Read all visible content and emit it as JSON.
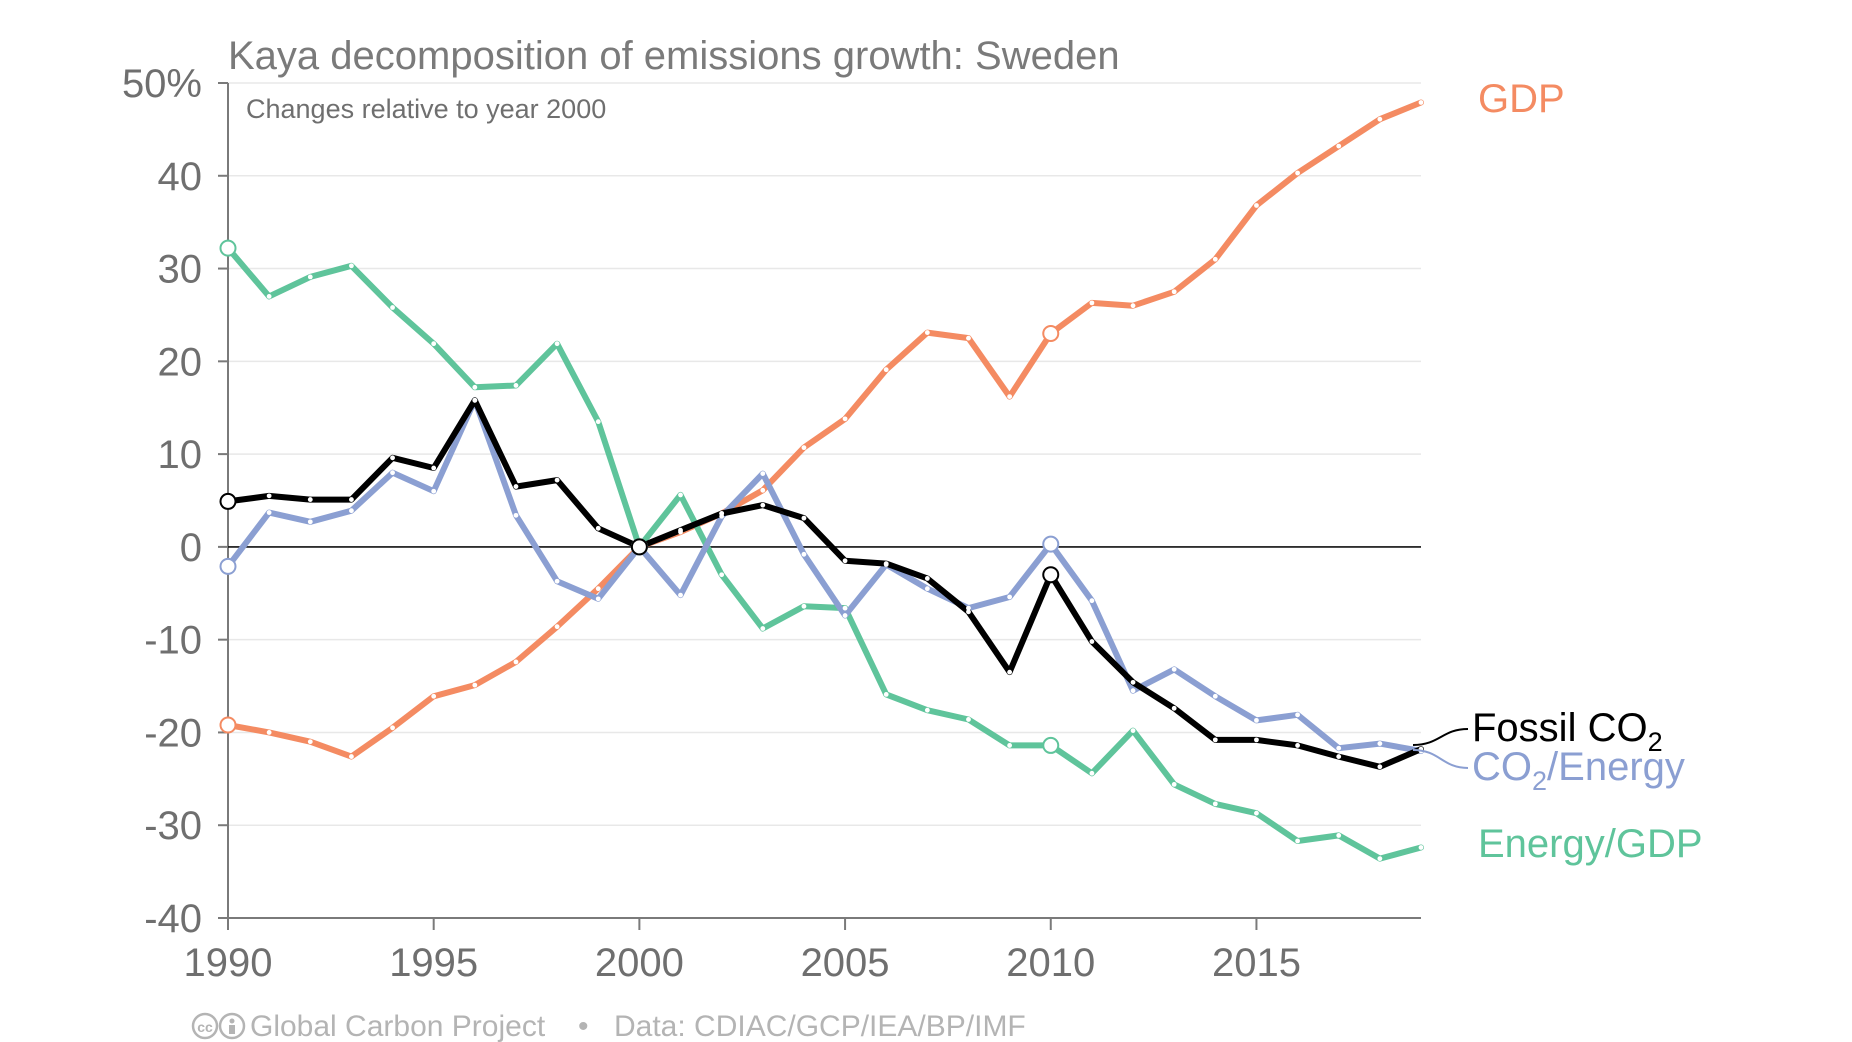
{
  "chart_data": {
    "type": "line",
    "title": "Kaya decomposition of emissions growth: Sweden",
    "subtitle": "Changes relative to year 2000",
    "xlim": [
      1990,
      2019
    ],
    "ylim": [
      -40,
      50
    ],
    "x_ticks": [
      1990,
      1995,
      2000,
      2005,
      2010,
      2015
    ],
    "x_tick_labels": [
      "1990",
      "1995",
      "2000",
      "2005",
      "2010",
      "2015"
    ],
    "y_ticks": [
      50,
      40,
      30,
      20,
      10,
      0,
      -10,
      -20,
      -30,
      -40
    ],
    "y_tick_labels": [
      "50%",
      "40",
      "30",
      "20",
      "10",
      "0",
      "-10",
      "-20",
      "-30",
      "-40"
    ],
    "grid": true,
    "legend": "inline-right",
    "x": [
      1990,
      1991,
      1992,
      1993,
      1994,
      1995,
      1996,
      1997,
      1998,
      1999,
      2000,
      2001,
      2002,
      2003,
      2004,
      2005,
      2006,
      2007,
      2008,
      2009,
      2010,
      2011,
      2012,
      2013,
      2014,
      2015,
      2016,
      2017,
      2018,
      2019
    ],
    "series": [
      {
        "name": "GDP",
        "color": "#f48b62",
        "values": [
          -19.2,
          -20,
          -21,
          -22.6,
          -19.5,
          -16.1,
          -14.9,
          -12.4,
          -8.6,
          -4.5,
          0,
          1.6,
          3.6,
          6.1,
          10.7,
          13.8,
          19.1,
          23.1,
          22.5,
          16.2,
          23.0,
          26.3,
          26.0,
          27.5,
          31.0,
          36.8,
          40.3,
          43.2,
          46.1,
          47.9
        ]
      },
      {
        "name": "Energy/GDP",
        "color": "#5fc49b",
        "values": [
          32.2,
          27.0,
          29.1,
          30.3,
          25.8,
          21.9,
          17.2,
          17.4,
          21.9,
          13.5,
          0,
          5.6,
          -3.0,
          -8.8,
          -6.4,
          -6.6,
          -15.9,
          -17.6,
          -18.6,
          -21.4,
          -21.4,
          -24.4,
          -19.8,
          -25.6,
          -27.7,
          -28.7,
          -31.7,
          -31.1,
          -33.6,
          -32.4
        ]
      },
      {
        "name": "CO₂/Energy",
        "color": "#8b9fd2",
        "values": [
          -2.1,
          3.7,
          2.7,
          3.9,
          8.0,
          6.0,
          15.8,
          3.4,
          -3.7,
          -5.6,
          0,
          -5.2,
          3.3,
          7.9,
          -0.8,
          -7.4,
          -1.9,
          -4.5,
          -6.6,
          -5.4,
          0.3,
          -5.8,
          -15.5,
          -13.2,
          -16.1,
          -18.7,
          -18.1,
          -21.7,
          -21.2,
          -22.0
        ]
      },
      {
        "name": "Fossil CO₂",
        "color": "#000000",
        "values": [
          4.9,
          5.5,
          5.1,
          5.1,
          9.6,
          8.5,
          15.8,
          6.5,
          7.2,
          2.0,
          0,
          1.8,
          3.6,
          4.5,
          3.1,
          -1.5,
          -1.8,
          -3.4,
          -7.0,
          -13.5,
          -3.0,
          -10.2,
          -14.6,
          -17.4,
          -20.8,
          -20.8,
          -21.4,
          -22.6,
          -23.7,
          -21.8
        ]
      }
    ],
    "highlighted_years": [
      1990,
      2000,
      2010
    ]
  },
  "labels": {
    "gdp": "GDP",
    "energy_gdp": "Energy/GDP",
    "fossil_prefix": "Fossil CO",
    "co2_prefix": "CO",
    "subscript": "2",
    "energy_suffix": "/Energy"
  },
  "footer": {
    "cc_icon": "cc-by-icon",
    "project": "Global Carbon Project",
    "separator": "•",
    "source": "Data: CDIAC/GCP/IEA/BP/IMF"
  },
  "colors": {
    "gdp": "#f48b62",
    "energy_gdp": "#5fc49b",
    "co2_energy": "#8b9fd2",
    "fossil_co2": "#000000"
  }
}
